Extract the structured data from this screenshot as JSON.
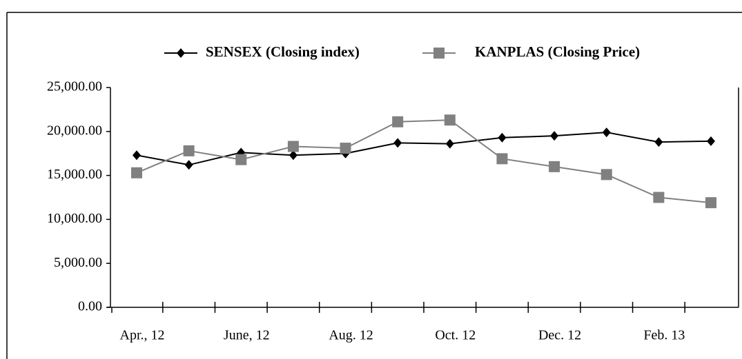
{
  "chart_data": {
    "type": "line",
    "categories": [
      "Apr., 12",
      null,
      "June, 12",
      null,
      "Aug. 12",
      null,
      "Oct. 12",
      null,
      "Dec. 12",
      null,
      "Feb. 13",
      null
    ],
    "series": [
      {
        "name": "SENSEX (Closing index)",
        "color": "#000000",
        "marker": "diamond",
        "values": [
          17300,
          16200,
          17600,
          17300,
          17500,
          18700,
          18600,
          19300,
          19500,
          19900,
          18800,
          18900
        ]
      },
      {
        "name": "KANPLAS (Closing Price)",
        "color": "#808080",
        "marker": "square",
        "values": [
          15300,
          17800,
          16800,
          18300,
          18100,
          21100,
          21300,
          16900,
          16000,
          15100,
          12500,
          11900
        ]
      }
    ],
    "ylim": [
      0,
      25000
    ],
    "yticks": [
      {
        "value": 0,
        "label": "0.00"
      },
      {
        "value": 5000,
        "label": "5,000.00"
      },
      {
        "value": 10000,
        "label": "10,000.00"
      },
      {
        "value": 15000,
        "label": "15,000.00"
      },
      {
        "value": 20000,
        "label": "20,000.00"
      },
      {
        "value": 25000,
        "label": "25,000.00"
      }
    ],
    "legend": "top"
  }
}
